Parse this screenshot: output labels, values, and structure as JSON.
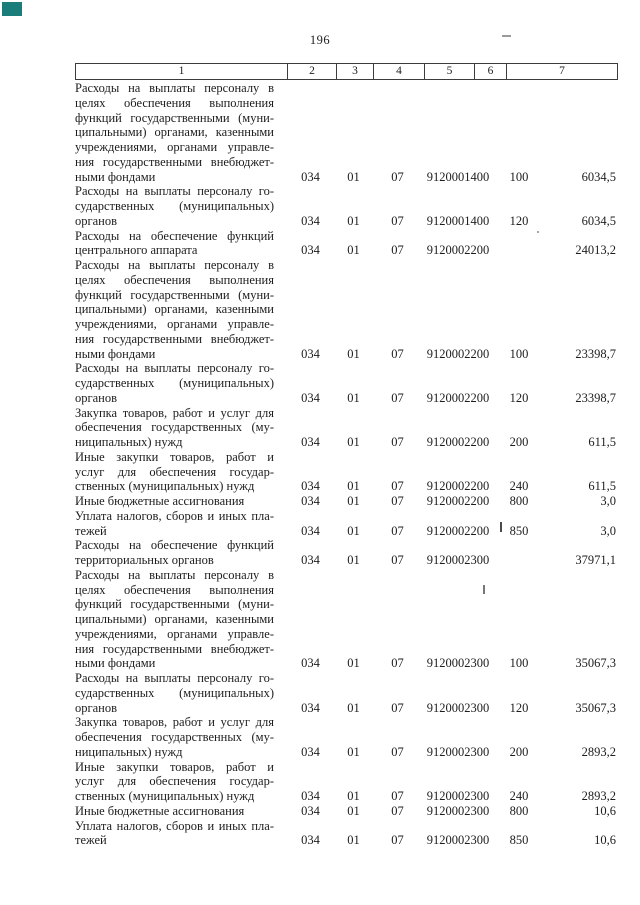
{
  "page": {
    "number": "196",
    "corner_marker_color": "#1a7d7a"
  },
  "table": {
    "header_cols": [
      "1",
      "2",
      "3",
      "4",
      "5",
      "6",
      "7"
    ],
    "rows": [
      {
        "lines": [
          "Расходы на выплаты персоналу в",
          "целях обеспечения выполнения",
          "функций государственными (муни-",
          "ципальными) органами, казенными",
          "учреждениями, органами управле-",
          "ния государственными внебюджет-",
          "ными фондами"
        ],
        "c2": "034",
        "c3": "01",
        "c4": "07",
        "c5": "9120001400",
        "c6": "100",
        "c7": "6034,5"
      },
      {
        "lines": [
          "Расходы на выплаты персоналу го-",
          "сударственных (муниципальных)",
          "органов"
        ],
        "c2": "034",
        "c3": "01",
        "c4": "07",
        "c5": "9120001400",
        "c6": "120",
        "c7": "6034,5"
      },
      {
        "lines": [
          "Расходы на обеспечение функций",
          "центрального аппарата"
        ],
        "c2": "034",
        "c3": "01",
        "c4": "07",
        "c5": "9120002200",
        "c6": "",
        "c7": "24013,2"
      },
      {
        "lines": [
          "Расходы на выплаты персоналу в",
          "целях обеспечения выполнения",
          "функций государственными (муни-",
          "ципальными) органами, казенными",
          "учреждениями, органами управле-",
          "ния государственными внебюджет-",
          "ными фондами"
        ],
        "c2": "034",
        "c3": "01",
        "c4": "07",
        "c5": "9120002200",
        "c6": "100",
        "c7": "23398,7"
      },
      {
        "lines": [
          "Расходы на выплаты персоналу го-",
          "сударственных (муниципальных)",
          "органов"
        ],
        "c2": "034",
        "c3": "01",
        "c4": "07",
        "c5": "9120002200",
        "c6": "120",
        "c7": "23398,7"
      },
      {
        "lines": [
          "Закупка товаров, работ и услуг для",
          "обеспечения государственных (му-",
          "ниципальных) нужд"
        ],
        "c2": "034",
        "c3": "01",
        "c4": "07",
        "c5": "9120002200",
        "c6": "200",
        "c7": "611,5"
      },
      {
        "lines": [
          "Иные закупки товаров, работ и",
          "услуг для обеспечения государ-",
          "ственных (муниципальных) нужд"
        ],
        "c2": "034",
        "c3": "01",
        "c4": "07",
        "c5": "9120002200",
        "c6": "240",
        "c7": "611,5"
      },
      {
        "lines": [
          "Иные бюджетные ассигнования"
        ],
        "c2": "034",
        "c3": "01",
        "c4": "07",
        "c5": "9120002200",
        "c6": "800",
        "c7": "3,0"
      },
      {
        "lines": [
          "Уплата налогов, сборов и иных пла-",
          "тежей"
        ],
        "c2": "034",
        "c3": "01",
        "c4": "07",
        "c5": "9120002200",
        "c6": "850",
        "c7": "3,0"
      },
      {
        "lines": [
          "Расходы на обеспечение функций",
          "территориальных органов"
        ],
        "c2": "034",
        "c3": "01",
        "c4": "07",
        "c5": "9120002300",
        "c6": "",
        "c7": "37971,1"
      },
      {
        "lines": [
          "Расходы на выплаты персоналу в",
          "целях обеспечения выполнения",
          "функций государственными (муни-",
          "ципальными) органами, казенными",
          "учреждениями, органами управле-",
          "ния государственными внебюджет-",
          "ными фондами"
        ],
        "c2": "034",
        "c3": "01",
        "c4": "07",
        "c5": "9120002300",
        "c6": "100",
        "c7": "35067,3"
      },
      {
        "lines": [
          "Расходы на выплаты персоналу го-",
          "сударственных (муниципальных)",
          "органов"
        ],
        "c2": "034",
        "c3": "01",
        "c4": "07",
        "c5": "9120002300",
        "c6": "120",
        "c7": "35067,3"
      },
      {
        "lines": [
          "Закупка товаров, работ и услуг для",
          "обеспечения государственных (му-",
          "ниципальных) нужд"
        ],
        "c2": "034",
        "c3": "01",
        "c4": "07",
        "c5": "9120002300",
        "c6": "200",
        "c7": "2893,2"
      },
      {
        "lines": [
          "Иные закупки товаров, работ и",
          "услуг для обеспечения государ-",
          "ственных (муниципальных) нужд"
        ],
        "c2": "034",
        "c3": "01",
        "c4": "07",
        "c5": "9120002300",
        "c6": "240",
        "c7": "2893,2"
      },
      {
        "lines": [
          "Иные бюджетные ассигнования"
        ],
        "c2": "034",
        "c3": "01",
        "c4": "07",
        "c5": "9120002300",
        "c6": "800",
        "c7": "10,6"
      },
      {
        "lines": [
          "Уплата налогов, сборов и иных пла-",
          "тежей"
        ],
        "c2": "034",
        "c3": "01",
        "c4": "07",
        "c5": "9120002300",
        "c6": "850",
        "c7": "10,6"
      }
    ]
  }
}
